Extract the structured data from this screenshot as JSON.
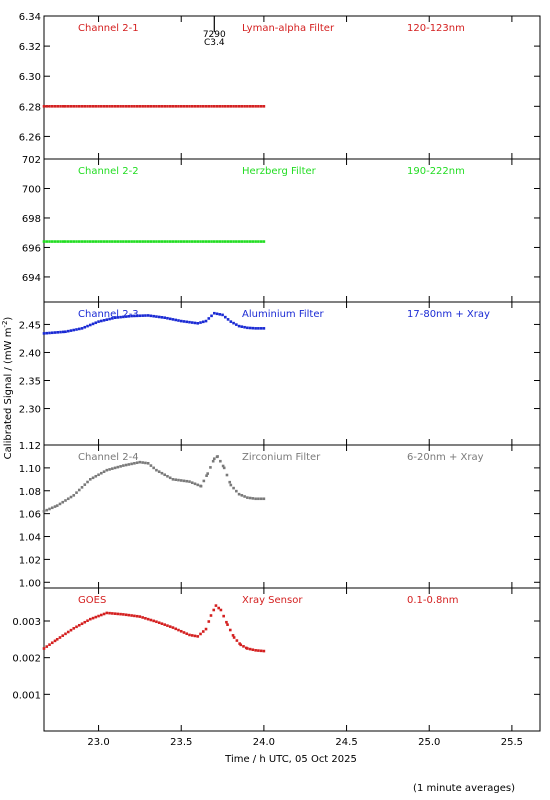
{
  "figure": {
    "ylabel": "Calibrated Signal / (mW m",
    "ylabel_sup": "-2",
    "ylabel_close": ")",
    "xlabel": "Time / h UTC, 05 Oct 2025",
    "footnote": "(1 minute averages)",
    "event": {
      "time": 23.7,
      "number": "7290",
      "class": "C3.4"
    }
  },
  "chart_data": [
    {
      "type": "scatter",
      "channel": "Channel 2-1",
      "filter": "Lyman-alpha Filter",
      "band": "120-123nm",
      "color": "#d42020",
      "xlim": [
        22.67,
        25.67
      ],
      "ylim": [
        6.245,
        6.34
      ],
      "yticks": [
        6.26,
        6.28,
        6.3,
        6.32,
        6.34
      ],
      "ytick_labels": [
        "6.26",
        "6.28",
        "6.30",
        "6.32",
        "6.34"
      ],
      "x": [
        22.67,
        22.8,
        23.0,
        23.2,
        23.4,
        23.6,
        23.8,
        24.0
      ],
      "y": [
        6.28,
        6.28,
        6.28,
        6.28,
        6.28,
        6.28,
        6.28,
        6.28
      ]
    },
    {
      "type": "scatter",
      "channel": "Channel 2-2",
      "filter": "Herzberg Filter",
      "band": "190-222nm",
      "color": "#22dd22",
      "xlim": [
        22.67,
        25.67
      ],
      "ylim": [
        692.3,
        702
      ],
      "yticks": [
        694,
        696,
        698,
        700,
        702
      ],
      "ytick_labels": [
        "694",
        "696",
        "698",
        "700",
        "702"
      ],
      "x": [
        22.67,
        22.8,
        23.0,
        23.2,
        23.4,
        23.6,
        23.8,
        24.0
      ],
      "y": [
        696.4,
        696.4,
        696.4,
        696.4,
        696.4,
        696.4,
        696.4,
        696.4
      ]
    },
    {
      "type": "scatter",
      "channel": "Channel 2-3",
      "filter": "Aluminium Filter",
      "band": "17-80nm + Xray",
      "color": "#1a2ad4",
      "xlim": [
        22.67,
        25.67
      ],
      "ylim": [
        2.235,
        2.49
      ],
      "yticks": [
        2.3,
        2.35,
        2.4,
        2.45
      ],
      "ytick_labels": [
        "2.30",
        "2.35",
        "2.40",
        "2.45"
      ],
      "x": [
        22.67,
        22.8,
        22.9,
        23.0,
        23.1,
        23.2,
        23.3,
        23.4,
        23.5,
        23.6,
        23.65,
        23.7,
        23.75,
        23.8,
        23.85,
        23.9,
        23.95,
        24.0
      ],
      "y": [
        2.434,
        2.437,
        2.443,
        2.455,
        2.462,
        2.465,
        2.466,
        2.462,
        2.456,
        2.452,
        2.456,
        2.47,
        2.467,
        2.455,
        2.447,
        2.444,
        2.443,
        2.443
      ]
    },
    {
      "type": "scatter",
      "channel": "Channel 2-4",
      "filter": "Zirconium Filter",
      "band": "6-20nm + Xray",
      "color": "#7a7a7a",
      "xlim": [
        22.67,
        25.67
      ],
      "ylim": [
        0.995,
        1.12
      ],
      "yticks": [
        1.0,
        1.02,
        1.04,
        1.06,
        1.08,
        1.1,
        1.12
      ],
      "ytick_labels": [
        "1.00",
        "1.02",
        "1.04",
        "1.06",
        "1.08",
        "1.10",
        "1.12"
      ],
      "x": [
        22.67,
        22.75,
        22.85,
        22.95,
        23.05,
        23.15,
        23.25,
        23.3,
        23.35,
        23.45,
        23.55,
        23.62,
        23.66,
        23.7,
        23.72,
        23.76,
        23.8,
        23.85,
        23.9,
        23.95,
        24.0
      ],
      "y": [
        1.062,
        1.067,
        1.076,
        1.09,
        1.098,
        1.102,
        1.105,
        1.104,
        1.098,
        1.09,
        1.088,
        1.084,
        1.095,
        1.108,
        1.11,
        1.1,
        1.085,
        1.077,
        1.074,
        1.073,
        1.073
      ]
    },
    {
      "type": "scatter",
      "channel": "GOES",
      "filter": "Xray Sensor",
      "band": "0.1-0.8nm",
      "color": "#d42020",
      "xlim": [
        22.67,
        25.67
      ],
      "ylim": [
        0.0,
        0.0039
      ],
      "yticks": [
        0.001,
        0.002,
        0.003
      ],
      "ytick_labels": [
        "0.001",
        "0.002",
        "0.003"
      ],
      "x": [
        22.67,
        22.75,
        22.85,
        22.95,
        23.05,
        23.15,
        23.25,
        23.35,
        23.45,
        23.55,
        23.6,
        23.65,
        23.68,
        23.71,
        23.74,
        23.78,
        23.82,
        23.86,
        23.9,
        23.95,
        24.0
      ],
      "y": [
        0.00225,
        0.0025,
        0.0028,
        0.00305,
        0.00322,
        0.00318,
        0.00312,
        0.00298,
        0.00282,
        0.00262,
        0.00258,
        0.00278,
        0.00315,
        0.00342,
        0.0033,
        0.0029,
        0.00255,
        0.00235,
        0.00225,
        0.0022,
        0.00218
      ]
    }
  ],
  "xaxis": {
    "xlim": [
      22.67,
      25.67
    ],
    "ticks": [
      23.0,
      23.5,
      24.0,
      24.5,
      25.0,
      25.5
    ],
    "tick_labels": [
      "23.0",
      "23.5",
      "24.0",
      "24.5",
      "25.0",
      "25.5"
    ]
  }
}
